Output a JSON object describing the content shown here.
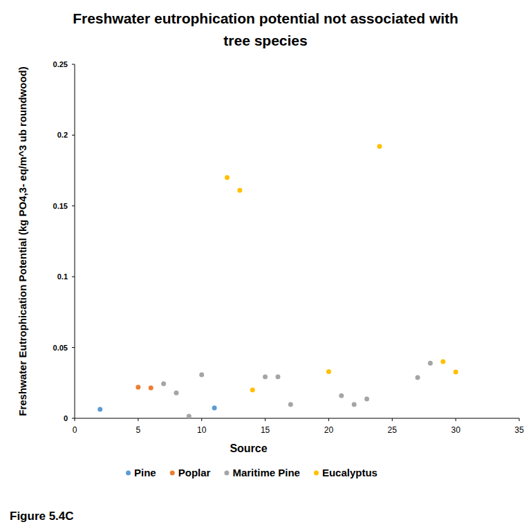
{
  "chart_data": {
    "type": "scatter",
    "title": "Freshwater eutrophication potential not associated with tree species",
    "x_label": "Source",
    "y_label": "Freshwater Eutrophication Potential (kg PO4,3- eq/m^3 ub roundwood)",
    "xlim": [
      0,
      35
    ],
    "xticks": [
      0,
      5,
      10,
      15,
      20,
      25,
      30,
      35
    ],
    "ylim": [
      0,
      0.25
    ],
    "yticks": [
      0,
      0.05,
      0.1,
      0.15,
      0.2,
      0.25
    ],
    "grid": false,
    "legend": "bottom",
    "marker": "circle",
    "series": [
      {
        "name": "Pine",
        "color": "#5b9bd5",
        "x": [
          2,
          11
        ],
        "values": [
          0.0063,
          0.0073
        ]
      },
      {
        "name": "Poplar",
        "color": "#ed7d31",
        "x": [
          5,
          6
        ],
        "values": [
          0.022,
          0.0215
        ]
      },
      {
        "name": "Maritime Pine",
        "color": "#a5a5a5",
        "x": [
          7,
          8,
          9,
          10,
          15,
          16,
          17,
          21,
          22,
          23,
          27,
          28
        ],
        "values": [
          0.0244,
          0.018,
          0.0015,
          0.0308,
          0.0293,
          0.0293,
          0.0098,
          0.016,
          0.0098,
          0.0137,
          0.0288,
          0.039
        ]
      },
      {
        "name": "Eucalyptus",
        "color": "#ffc000",
        "x": [
          12,
          13,
          14,
          20,
          24,
          29,
          30
        ],
        "values": [
          0.17,
          0.161,
          0.02,
          0.033,
          0.192,
          0.04,
          0.0327
        ]
      }
    ]
  },
  "caption": "Figure 5.4C"
}
